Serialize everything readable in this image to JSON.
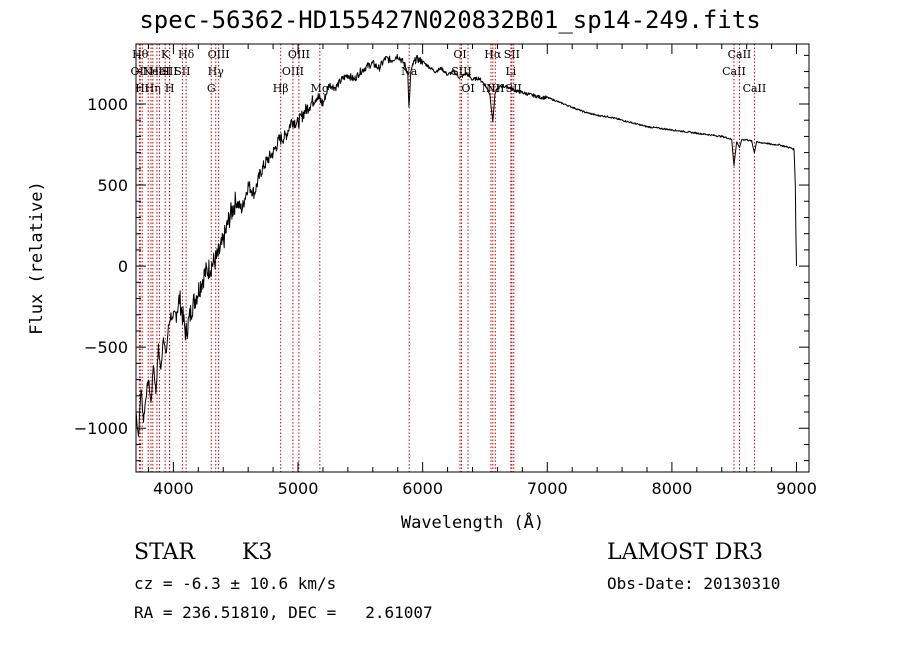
{
  "chart_data": {
    "type": "line",
    "title": "spec-56362-HD155427N020832B01_sp14-249.fits",
    "xlabel": "Wavelength (Å)",
    "ylabel": "Flux (relative)",
    "xlim": [
      3700,
      9100
    ],
    "ylim": [
      -1270,
      1370
    ],
    "xticks": [
      4000,
      5000,
      6000,
      7000,
      8000,
      9000
    ],
    "yticks": [
      -1000,
      -500,
      0,
      500,
      1000
    ],
    "series": [
      {
        "name": "flux",
        "x": [
          3700,
          3720,
          3740,
          3760,
          3780,
          3800,
          3820,
          3840,
          3860,
          3880,
          3900,
          3920,
          3940,
          3960,
          3980,
          4000,
          4050,
          4100,
          4150,
          4200,
          4250,
          4300,
          4350,
          4400,
          4450,
          4500,
          4550,
          4600,
          4650,
          4700,
          4750,
          4800,
          4850,
          4900,
          4950,
          5000,
          5050,
          5100,
          5150,
          5200,
          5250,
          5300,
          5350,
          5400,
          5450,
          5500,
          5550,
          5600,
          5650,
          5700,
          5750,
          5800,
          5850,
          5880,
          5890,
          5896,
          5905,
          5920,
          5950,
          6000,
          6050,
          6100,
          6150,
          6200,
          6250,
          6300,
          6350,
          6400,
          6450,
          6500,
          6540,
          6563,
          6580,
          6600,
          6650,
          6700,
          6750,
          6800,
          6850,
          6900,
          6950,
          7000,
          7100,
          7200,
          7300,
          7400,
          7500,
          7600,
          7700,
          7800,
          7900,
          8000,
          8100,
          8200,
          8300,
          8400,
          8450,
          8480,
          8498,
          8520,
          8542,
          8560,
          8600,
          8640,
          8662,
          8680,
          8700,
          8750,
          8800,
          8850,
          8900,
          8950,
          8980,
          8990,
          8995,
          9000
        ],
        "y": [
          -900,
          -1050,
          -750,
          -950,
          -800,
          -700,
          -850,
          -600,
          -780,
          -500,
          -650,
          -420,
          -560,
          -380,
          -300,
          -350,
          -200,
          -420,
          -250,
          -150,
          -50,
          0,
          50,
          150,
          300,
          400,
          350,
          500,
          450,
          580,
          650,
          700,
          780,
          800,
          900,
          880,
          950,
          1000,
          1050,
          1000,
          1120,
          1100,
          1150,
          1180,
          1150,
          1200,
          1230,
          1250,
          1220,
          1280,
          1270,
          1300,
          1250,
          1200,
          980,
          1050,
          1200,
          1240,
          1280,
          1260,
          1230,
          1200,
          1220,
          1180,
          1200,
          1160,
          1190,
          1150,
          1160,
          1120,
          1060,
          890,
          1060,
          1100,
          1110,
          1100,
          1080,
          1070,
          1060,
          1050,
          1040,
          1040,
          1010,
          980,
          950,
          930,
          920,
          900,
          880,
          860,
          850,
          840,
          830,
          820,
          810,
          800,
          790,
          780,
          620,
          770,
          730,
          780,
          780,
          770,
          700,
          770,
          760,
          760,
          750,
          750,
          740,
          730,
          720,
          500,
          200,
          0
        ]
      }
    ],
    "line_markers": [
      {
        "x": 3734,
        "label": "Hθ",
        "row": 0
      },
      {
        "x": 3727,
        "label": "OII",
        "row": 1
      },
      {
        "x": 3750,
        "label": "Hι",
        "row": 2
      },
      {
        "x": 3798,
        "label": "",
        "row": 1
      },
      {
        "x": 3820,
        "label": "",
        "row": 1
      },
      {
        "x": 3835,
        "label": "Hη",
        "row": 2
      },
      {
        "x": 3868,
        "label": "NeIII",
        "row": 1
      },
      {
        "x": 3889,
        "label": "HeI",
        "row": 1
      },
      {
        "x": 3934,
        "label": "K",
        "row": 0
      },
      {
        "x": 3969,
        "label": "SII",
        "row": 1
      },
      {
        "x": 3970,
        "label": "H",
        "row": 2
      },
      {
        "x": 4102,
        "label": "Hδ",
        "row": 0
      },
      {
        "x": 4072,
        "label": "SII",
        "row": 1
      },
      {
        "x": 4304,
        "label": "G",
        "row": 2
      },
      {
        "x": 4340,
        "label": "Hγ",
        "row": 1
      },
      {
        "x": 4363,
        "label": "OIII",
        "row": 0
      },
      {
        "x": 4861,
        "label": "Hβ",
        "row": 2
      },
      {
        "x": 4959,
        "label": "OIII",
        "row": 1
      },
      {
        "x": 5007,
        "label": "OIII",
        "row": 0
      },
      {
        "x": 5175,
        "label": "Mg",
        "row": 2
      },
      {
        "x": 5892,
        "label": "Na",
        "row": 1
      },
      {
        "x": 6300,
        "label": "OI",
        "row": 0
      },
      {
        "x": 6312,
        "label": "SIII",
        "row": 1
      },
      {
        "x": 6364,
        "label": "OI",
        "row": 2
      },
      {
        "x": 6548,
        "label": "NII",
        "row": 2
      },
      {
        "x": 6563,
        "label": "Hα",
        "row": 0
      },
      {
        "x": 6583,
        "label": "NII",
        "row": 2
      },
      {
        "x": 6708,
        "label": "Li",
        "row": 1
      },
      {
        "x": 6716,
        "label": "SII",
        "row": 0
      },
      {
        "x": 6731,
        "label": "SII",
        "row": 2
      },
      {
        "x": 8498,
        "label": "CaII",
        "row": 1
      },
      {
        "x": 8542,
        "label": "CaII",
        "row": 0
      },
      {
        "x": 8662,
        "label": "CaII",
        "row": 2
      }
    ]
  },
  "info": {
    "object_class": "STAR",
    "subclass": "K3",
    "survey": "LAMOST DR3",
    "redshift_text": "cz = -6.3 ± 10.6 km/s",
    "obs_date": "Obs-Date: 20130310",
    "coords": "RA = 236.51810, DEC =   2.61007"
  }
}
